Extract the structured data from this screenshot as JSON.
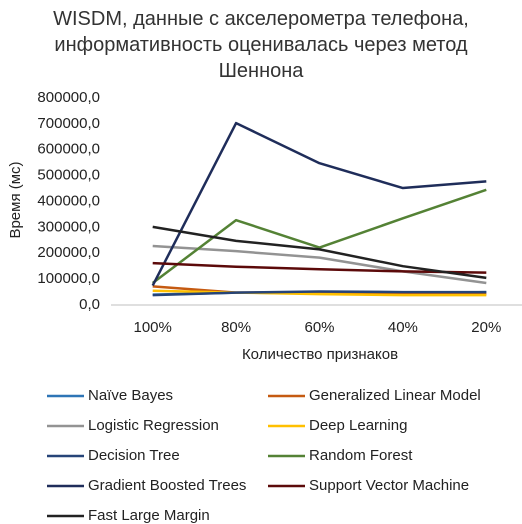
{
  "chart_data": {
    "type": "line",
    "title": "WISDM, данные с акселерометра телефона, информативность оценивалась через метод Шеннона",
    "y_label": "Время (мс)",
    "x_label": "Количество признаков",
    "categories": [
      "100%",
      "80%",
      "60%",
      "40%",
      "20%"
    ],
    "ylim": [
      0,
      800000
    ],
    "yticks": [
      {
        "value": 0,
        "label": "0,0"
      },
      {
        "value": 100000,
        "label": "100000,0"
      },
      {
        "value": 200000,
        "label": "200000,0"
      },
      {
        "value": 300000,
        "label": "300000,0"
      },
      {
        "value": 400000,
        "label": "400000,0"
      },
      {
        "value": 500000,
        "label": "500000,0"
      },
      {
        "value": 600000,
        "label": "600000,0"
      },
      {
        "value": 700000,
        "label": "700000,0"
      },
      {
        "value": 800000,
        "label": "800000,0"
      }
    ],
    "series": [
      {
        "name": "Naïve Bayes",
        "color": "#2e75b6",
        "values": [
          40000,
          48000,
          45000,
          45000,
          50000
        ]
      },
      {
        "name": "Generalized Linear Model",
        "color": "#c55a11",
        "values": [
          72000,
          48000,
          50000,
          42000,
          42000
        ]
      },
      {
        "name": "Logistic Regression",
        "color": "#939393",
        "values": [
          228000,
          208000,
          183000,
          130000,
          85000
        ]
      },
      {
        "name": "Deep Learning",
        "color": "#ffc000",
        "values": [
          55000,
          48000,
          42000,
          38000,
          38000
        ]
      },
      {
        "name": "Decision Tree",
        "color": "#264478",
        "values": [
          38000,
          48000,
          52000,
          50000,
          50000
        ]
      },
      {
        "name": "Random Forest",
        "color": "#548235",
        "values": [
          85000,
          328000,
          222000,
          335000,
          445000
        ]
      },
      {
        "name": "Gradient Boosted Trees",
        "color": "#1f2d5a",
        "values": [
          75000,
          703000,
          548000,
          452000,
          478000
        ]
      },
      {
        "name": "Support Vector Machine",
        "color": "#5c0a0a",
        "values": [
          162000,
          148000,
          138000,
          130000,
          125000
        ]
      },
      {
        "name": "Fast Large Margin",
        "color": "#222222",
        "values": [
          302000,
          248000,
          215000,
          150000,
          105000
        ]
      }
    ]
  }
}
